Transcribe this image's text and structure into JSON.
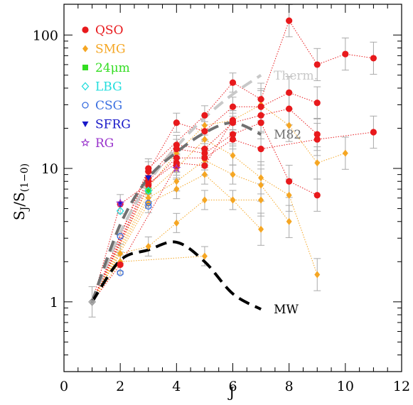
{
  "chart_data": {
    "type": "scatter",
    "xlabel": "J",
    "ylabel": "S_J/S_(1-0)",
    "ylabel_main": "S",
    "ylabel_sub": "J",
    "ylabel_div": "/S",
    "ylabel_sub2": "(1−0)",
    "xlim": [
      0,
      12
    ],
    "ylim": [
      0.3,
      170
    ],
    "yscale": "log",
    "xticks": [
      0,
      2,
      4,
      6,
      8,
      10,
      12
    ],
    "xtick_labels": [
      "0",
      "2",
      "4",
      "6",
      "8",
      "10",
      "12"
    ],
    "yticks": [
      1,
      10,
      100
    ],
    "ytick_labels": [
      "1",
      "10",
      "100"
    ],
    "legend_position": "top-left",
    "legend": [
      {
        "label": "QSO",
        "color": "#e8191c",
        "marker": "circle"
      },
      {
        "label": "SMG",
        "color": "#f5a623",
        "marker": "diamond"
      },
      {
        "label": "24μm",
        "color": "#33dd22",
        "marker": "square"
      },
      {
        "label": "LBG",
        "color": "#22dddd",
        "marker": "open-diamond"
      },
      {
        "label": "CSG",
        "color": "#3a6fe0",
        "marker": "open-circle"
      },
      {
        "label": "SFRG",
        "color": "#1818c8",
        "marker": "triangle-down"
      },
      {
        "label": "RG",
        "color": "#9933cc",
        "marker": "open-star"
      }
    ],
    "qso_series": [
      [
        [
          1,
          1.0
        ],
        [
          3,
          10.0
        ],
        [
          5,
          25.0
        ],
        [
          6,
          44.0
        ],
        [
          7,
          33.0
        ],
        [
          8,
          128.0
        ],
        [
          9,
          60.0
        ],
        [
          10,
          72.0
        ],
        [
          11,
          67.0
        ]
      ],
      [
        [
          1,
          1.0
        ],
        [
          3,
          9.5
        ],
        [
          4,
          22.0
        ],
        [
          5,
          19.0
        ],
        [
          6,
          29.0
        ],
        [
          7,
          29.0
        ],
        [
          8,
          37.0
        ],
        [
          9,
          31.0
        ]
      ],
      [
        [
          1,
          1.0
        ],
        [
          3,
          8.5
        ],
        [
          4,
          15.0
        ],
        [
          5,
          14.0
        ],
        [
          6,
          22.0
        ],
        [
          7,
          25.0
        ],
        [
          8,
          28.0
        ],
        [
          9,
          18.0
        ]
      ],
      [
        [
          1,
          1.0
        ],
        [
          3,
          8.0
        ],
        [
          4,
          14.0
        ],
        [
          5,
          13.0
        ],
        [
          6,
          18.0
        ],
        [
          7,
          22.0
        ],
        [
          8,
          8.0
        ],
        [
          9,
          6.3
        ]
      ],
      [
        [
          1,
          1.0
        ],
        [
          3,
          7.5
        ],
        [
          4,
          12.0
        ],
        [
          5,
          12.0
        ],
        [
          6,
          16.5
        ],
        [
          7,
          14.0
        ],
        [
          9,
          16.5
        ],
        [
          11,
          18.7
        ]
      ],
      [
        [
          1,
          1.0
        ],
        [
          2,
          5.4
        ],
        [
          4,
          11.0
        ],
        [
          5,
          10.5
        ],
        [
          6,
          23.0
        ]
      ],
      [
        [
          1,
          1.0
        ],
        [
          2,
          1.9
        ],
        [
          4,
          10.5
        ]
      ]
    ],
    "smg_series": [
      [
        [
          1,
          1.0
        ],
        [
          3,
          7.2
        ],
        [
          4,
          13.0
        ],
        [
          5,
          21.0
        ],
        [
          6,
          23.0
        ],
        [
          7,
          30.0
        ],
        [
          8,
          21.0
        ],
        [
          9,
          11.0
        ],
        [
          10,
          13.0
        ]
      ],
      [
        [
          1,
          1.0
        ],
        [
          3,
          6.5
        ],
        [
          4,
          10.0
        ],
        [
          5,
          16.5
        ],
        [
          6,
          12.5
        ],
        [
          7,
          8.5
        ],
        [
          8,
          6.3
        ],
        [
          9,
          1.6
        ]
      ],
      [
        [
          1,
          1.0
        ],
        [
          3,
          6.0
        ],
        [
          4,
          8.0
        ],
        [
          5,
          11.5
        ],
        [
          6,
          9.0
        ],
        [
          7,
          7.5
        ],
        [
          8,
          4.0
        ]
      ],
      [
        [
          1,
          1.0
        ],
        [
          3,
          5.5
        ],
        [
          4,
          7.0
        ],
        [
          5,
          9.0
        ],
        [
          6,
          5.8
        ],
        [
          7,
          3.5
        ]
      ],
      [
        [
          1,
          1.0
        ],
        [
          2,
          2.3
        ],
        [
          3,
          2.6
        ],
        [
          4,
          3.9
        ],
        [
          5,
          5.8
        ],
        [
          6,
          5.8
        ],
        [
          7,
          5.8
        ]
      ],
      [
        [
          1,
          1.0
        ],
        [
          2,
          2.0
        ],
        [
          5,
          2.2
        ]
      ]
    ],
    "other_points": {
      "24um": [
        [
          3,
          6.8
        ]
      ],
      "LBG": [
        [
          2,
          4.8
        ],
        [
          3,
          6.8
        ]
      ],
      "CSG": [
        [
          2,
          3.1
        ],
        [
          2,
          1.65
        ],
        [
          3,
          5.2
        ],
        [
          3,
          5.5
        ]
      ],
      "SFRG": [
        [
          2,
          5.4
        ],
        [
          3,
          8.5
        ]
      ],
      "RG": [
        [
          2,
          5.5
        ],
        [
          4,
          10.0
        ]
      ]
    },
    "model_curves": [
      {
        "name": "Therm.",
        "color": "#c8c8c8",
        "points": [
          [
            1,
            1.0
          ],
          [
            2,
            3.3
          ],
          [
            3,
            7.8
          ],
          [
            4,
            14.5
          ],
          [
            5,
            24.0
          ],
          [
            6,
            36.0
          ],
          [
            7,
            50.0
          ]
        ]
      },
      {
        "name": "M82",
        "color": "#707070",
        "points": [
          [
            1,
            1.0
          ],
          [
            2,
            3.8
          ],
          [
            3,
            8.5
          ],
          [
            4,
            13.2
          ],
          [
            5,
            18.5
          ],
          [
            6,
            22.0
          ],
          [
            7,
            18.0
          ]
        ]
      },
      {
        "name": "MW",
        "color": "#000000",
        "points": [
          [
            1,
            1.0
          ],
          [
            2,
            2.05
          ],
          [
            3,
            2.45
          ],
          [
            4,
            2.8
          ],
          [
            5,
            2.0
          ],
          [
            6,
            1.15
          ],
          [
            7,
            0.88
          ]
        ]
      }
    ]
  }
}
